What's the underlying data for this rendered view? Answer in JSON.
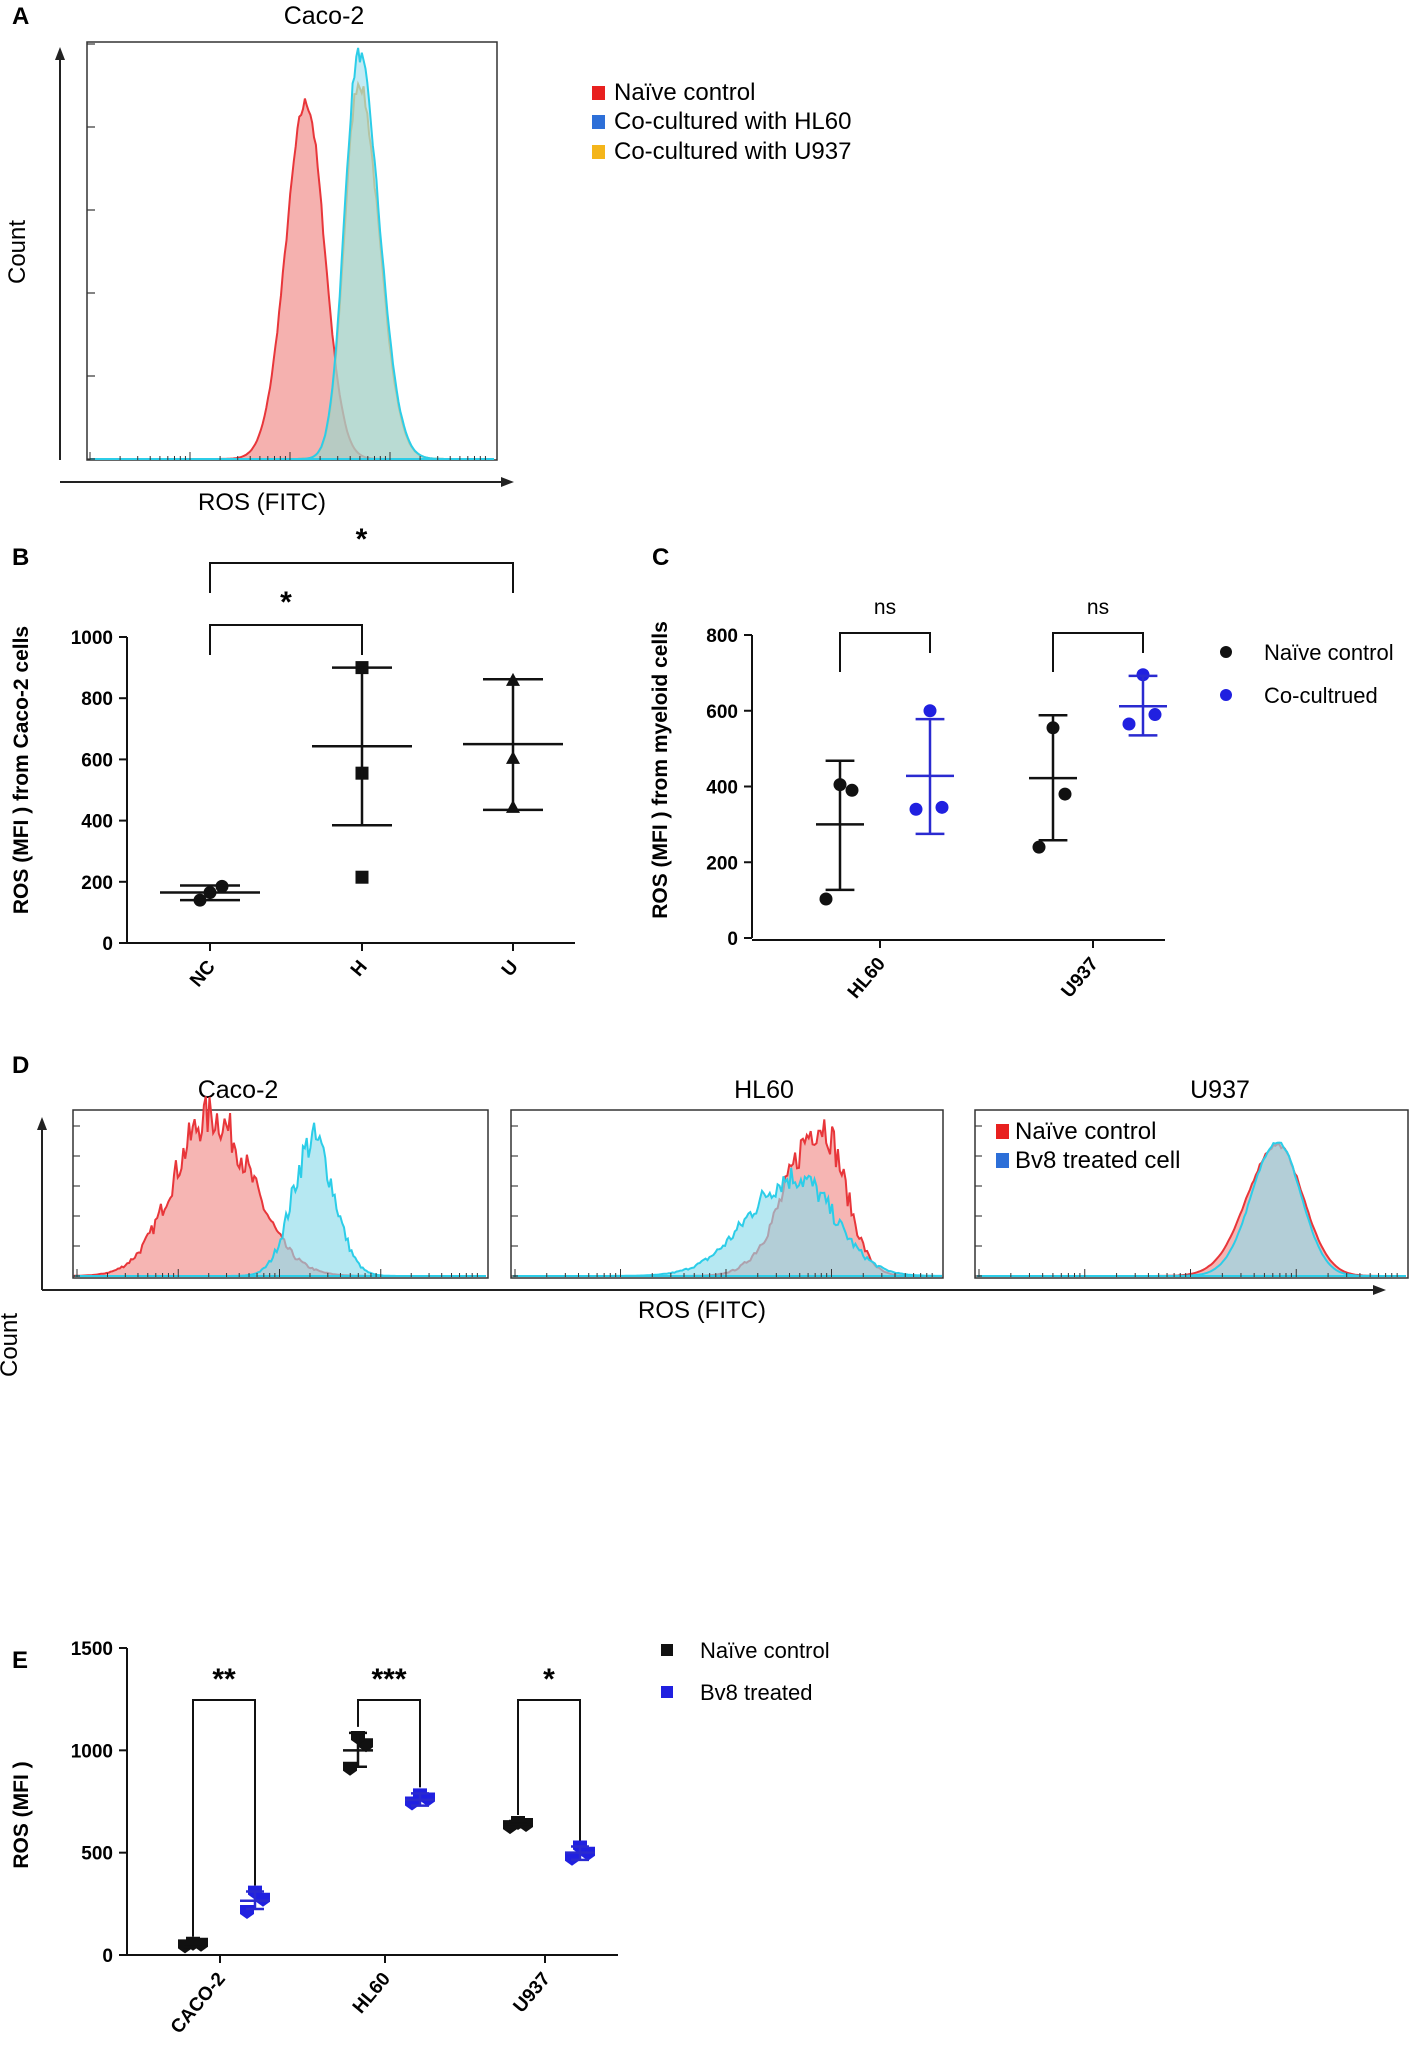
{
  "colors": {
    "red_fill": "#f4a8a6",
    "red_line": "#e8363a",
    "red_key": "#e8201f",
    "cyan_line": "#2ccde8",
    "cyan_fill": "#8fdbeb",
    "blue_key": "#2d6fd8",
    "orange_key": "#f4b51a",
    "orange_fill": "#d8bf7c",
    "overlap_fill": "#a7b5bf",
    "pointBlue": "#2020e0",
    "black": "#111111"
  },
  "chart_data": [
    {
      "id": "A",
      "type": "histogram",
      "panel_label": "A",
      "title": "Caco-2",
      "xlabel": "ROS (FITC)",
      "ylabel": "Count",
      "legend": [
        "Naïve control",
        "Co-cultured with HL60",
        "Co-cultured with U937"
      ],
      "series": [
        {
          "name": "Naïve control",
          "peak_x_log": 0.535,
          "sigma_left": 0.05,
          "sigma_right": 0.045,
          "height": 0.88
        },
        {
          "name": "Co-cultured with HL60",
          "peak_x_log": 0.665,
          "sigma_left": 0.035,
          "sigma_right": 0.05,
          "height": 1.0
        },
        {
          "name": "Co-cultured with U937",
          "peak_x_log": 0.665,
          "sigma_left": 0.035,
          "sigma_right": 0.05,
          "height": 0.93
        }
      ]
    },
    {
      "id": "B",
      "type": "scatter",
      "panel_label": "B",
      "ylabel": "ROS (MFI ) from Caco-2 cells",
      "categories": [
        "NC",
        "H",
        "U"
      ],
      "ylim": [
        0,
        1000
      ],
      "yticks": [
        0,
        200,
        400,
        600,
        800,
        1000
      ],
      "points": [
        [
          140,
          165,
          185
        ],
        [
          215,
          555,
          900
        ],
        [
          445,
          605,
          860
        ]
      ],
      "markers": [
        "circle",
        "square",
        "triangle"
      ],
      "mean": [
        165,
        643,
        650
      ],
      "sd_low": [
        140,
        385,
        435
      ],
      "sd_high": [
        188,
        900,
        862
      ],
      "significance": [
        {
          "from": 0,
          "to": 1,
          "label": "*"
        },
        {
          "from": 0,
          "to": 2,
          "label": "*"
        }
      ]
    },
    {
      "id": "C",
      "type": "scatter",
      "panel_label": "C",
      "ylabel": "ROS (MFI ) from myeloid cells",
      "categories": [
        "HL60",
        "U937"
      ],
      "ylim": [
        0,
        800
      ],
      "yticks": [
        0,
        200,
        400,
        600,
        800
      ],
      "legend": [
        "Naïve control",
        "Co-cultrued"
      ],
      "series": [
        {
          "name": "Naïve control",
          "points": [
            [
              103,
              390,
              405
            ],
            [
              240,
              380,
              555
            ]
          ],
          "mean": [
            300,
            422
          ],
          "sd_low": [
            127,
            258
          ],
          "sd_high": [
            468,
            588
          ]
        },
        {
          "name": "Co-cultrued",
          "points": [
            [
              340,
              345,
              600
            ],
            [
              565,
              590,
              695
            ]
          ],
          "mean": [
            428,
            612
          ],
          "sd_low": [
            275,
            535
          ],
          "sd_high": [
            578,
            692
          ]
        }
      ],
      "significance": [
        {
          "group": 0,
          "label": "ns"
        },
        {
          "group": 1,
          "label": "ns"
        }
      ]
    },
    {
      "id": "D",
      "type": "histogram",
      "panel_label": "D",
      "panels": [
        "Caco-2",
        "HL60",
        "U937"
      ],
      "xlabel": "ROS (FITC)",
      "ylabel": "Count",
      "legend": [
        "Naïve control",
        "Bv8 treated cell"
      ],
      "series": [
        {
          "panel": "Caco-2",
          "name": "Naïve control",
          "peak_x_log": 0.33,
          "sigma_left": 0.09,
          "sigma_right": 0.1,
          "height": 1.0
        },
        {
          "panel": "Caco-2",
          "name": "Bv8 treated cell",
          "peak_x_log": 0.58,
          "sigma_left": 0.05,
          "sigma_right": 0.05,
          "height": 0.85
        },
        {
          "panel": "HL60",
          "name": "Naïve control",
          "peak_x_log": 0.72,
          "sigma_left": 0.08,
          "sigma_right": 0.055,
          "height": 0.95
        },
        {
          "panel": "HL60",
          "name": "Bv8 treated cell",
          "peak_x_log": 0.66,
          "sigma_left": 0.11,
          "sigma_right": 0.09,
          "height": 0.62
        },
        {
          "panel": "U937",
          "name": "Naïve control",
          "peak_x_log": 0.7,
          "sigma_left": 0.07,
          "sigma_right": 0.06,
          "height": 0.82
        },
        {
          "panel": "U937",
          "name": "Bv8 treated cell",
          "peak_x_log": 0.7,
          "sigma_left": 0.06,
          "sigma_right": 0.055,
          "height": 0.84
        }
      ]
    },
    {
      "id": "E",
      "type": "scatter",
      "panel_label": "E",
      "ylabel": "ROS (MFI )",
      "categories": [
        "CACO-2",
        "HL60",
        "U937"
      ],
      "ylim": [
        0,
        1500
      ],
      "yticks": [
        0,
        500,
        1000,
        1500
      ],
      "legend": [
        "Naïve control",
        "Bv8 treated"
      ],
      "series": [
        {
          "name": "Naïve control",
          "points": [
            [
              42,
              50,
              55
            ],
            [
              910,
              1025,
              1060
            ],
            [
              625,
              635,
              645
            ]
          ],
          "mean": [
            50,
            1000,
            638
          ],
          "sd_low": [
            40,
            920,
            625
          ],
          "sd_high": [
            60,
            1085,
            655
          ]
        },
        {
          "name": "Bv8 treated",
          "points": [
            [
              210,
              270,
              305
            ],
            [
              740,
              760,
              780
            ],
            [
              470,
              495,
              525
            ]
          ],
          "mean": [
            265,
            758,
            500
          ],
          "sd_low": [
            225,
            730,
            465
          ],
          "sd_high": [
            310,
            790,
            530
          ]
        }
      ],
      "significance": [
        {
          "group": 0,
          "label": "**"
        },
        {
          "group": 1,
          "label": "***"
        },
        {
          "group": 2,
          "label": "*"
        }
      ]
    }
  ]
}
